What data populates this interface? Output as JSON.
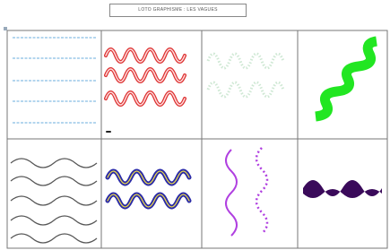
{
  "header": {
    "title": "LOTO GRAPHISME : LES VAGUES"
  }
}
